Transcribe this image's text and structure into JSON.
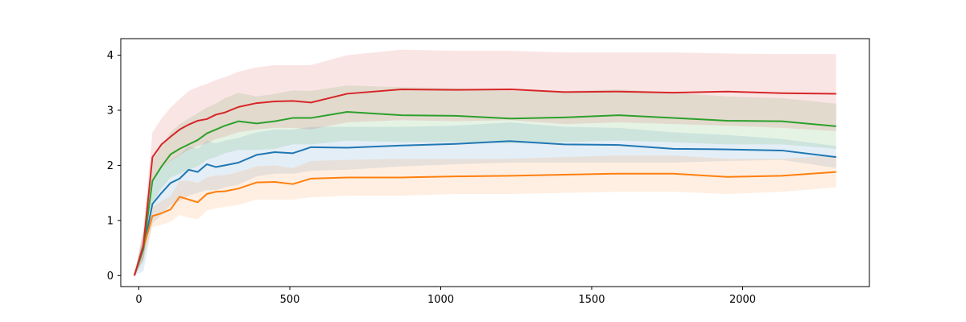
{
  "chart_data": {
    "type": "line",
    "title": "",
    "xlabel": "",
    "ylabel": "",
    "xlim": [
      -60,
      2420
    ],
    "ylim": [
      -0.2,
      4.3
    ],
    "xticks": [
      0,
      500,
      1000,
      1500,
      2000
    ],
    "yticks": [
      0,
      1,
      2,
      3,
      4
    ],
    "grid": false,
    "legend": "none",
    "shaded_bands": true,
    "series": [
      {
        "color": "#1f77b4",
        "band_opacity": 0.12,
        "x": [
          -15,
          15,
          45,
          75,
          105,
          135,
          165,
          195,
          225,
          255,
          285,
          330,
          390,
          450,
          510,
          570,
          690,
          870,
          1050,
          1230,
          1410,
          1590,
          1770,
          1950,
          2130,
          2310
        ],
        "y": [
          0,
          0.48,
          1.3,
          1.5,
          1.68,
          1.76,
          1.92,
          1.88,
          2.02,
          1.97,
          2.0,
          2.05,
          2.19,
          2.24,
          2.22,
          2.33,
          2.32,
          2.36,
          2.39,
          2.44,
          2.38,
          2.37,
          2.3,
          2.29,
          2.27,
          2.15
        ],
        "lower": [
          0,
          0.08,
          0.95,
          1.1,
          1.28,
          1.35,
          1.45,
          1.5,
          1.55,
          1.55,
          1.6,
          1.65,
          1.8,
          1.85,
          1.85,
          1.9,
          1.92,
          1.98,
          2.02,
          2.05,
          2.05,
          2.05,
          2.05,
          2.08,
          2.1,
          1.95
        ],
        "upper": [
          0,
          0.8,
          1.7,
          1.95,
          2.1,
          2.2,
          2.35,
          2.3,
          2.45,
          2.4,
          2.45,
          2.5,
          2.6,
          2.65,
          2.65,
          2.7,
          2.7,
          2.7,
          2.72,
          2.78,
          2.7,
          2.68,
          2.6,
          2.55,
          2.48,
          2.35
        ]
      },
      {
        "color": "#ff7f0e",
        "band_opacity": 0.12,
        "x": [
          -15,
          15,
          45,
          75,
          105,
          135,
          165,
          195,
          225,
          255,
          285,
          330,
          390,
          450,
          510,
          570,
          690,
          870,
          1050,
          1230,
          1410,
          1590,
          1770,
          1950,
          2130,
          2310
        ],
        "y": [
          0,
          0.5,
          1.08,
          1.13,
          1.2,
          1.43,
          1.38,
          1.33,
          1.48,
          1.52,
          1.53,
          1.58,
          1.69,
          1.7,
          1.66,
          1.76,
          1.78,
          1.78,
          1.8,
          1.81,
          1.83,
          1.85,
          1.85,
          1.79,
          1.81,
          1.88
        ],
        "lower": [
          0,
          0.3,
          0.88,
          0.92,
          0.98,
          1.1,
          1.05,
          1.02,
          1.18,
          1.22,
          1.25,
          1.28,
          1.38,
          1.38,
          1.38,
          1.42,
          1.45,
          1.45,
          1.48,
          1.48,
          1.5,
          1.52,
          1.52,
          1.48,
          1.52,
          1.6
        ],
        "upper": [
          0,
          0.68,
          1.25,
          1.35,
          1.45,
          1.72,
          1.72,
          1.68,
          1.78,
          1.82,
          1.82,
          1.88,
          1.98,
          2.0,
          1.95,
          2.08,
          2.1,
          2.12,
          2.12,
          2.12,
          2.15,
          2.18,
          2.18,
          2.12,
          2.12,
          2.18
        ]
      },
      {
        "color": "#2ca02c",
        "band_opacity": 0.12,
        "x": [
          -15,
          15,
          45,
          75,
          105,
          135,
          165,
          195,
          225,
          255,
          285,
          330,
          390,
          450,
          510,
          570,
          690,
          870,
          1050,
          1230,
          1410,
          1590,
          1770,
          1950,
          2130,
          2310
        ],
        "y": [
          0,
          0.5,
          1.72,
          1.98,
          2.2,
          2.3,
          2.38,
          2.46,
          2.58,
          2.65,
          2.72,
          2.8,
          2.76,
          2.8,
          2.86,
          2.86,
          2.97,
          2.91,
          2.9,
          2.85,
          2.87,
          2.91,
          2.86,
          2.81,
          2.8,
          2.71
        ],
        "lower": [
          0,
          0.25,
          1.32,
          1.58,
          1.78,
          1.85,
          1.92,
          1.98,
          2.1,
          2.15,
          2.22,
          2.28,
          2.28,
          2.3,
          2.38,
          2.38,
          2.45,
          2.42,
          2.42,
          2.4,
          2.42,
          2.45,
          2.42,
          2.38,
          2.38,
          2.3
        ],
        "upper": [
          0,
          0.75,
          2.1,
          2.35,
          2.6,
          2.75,
          2.85,
          2.95,
          3.05,
          3.12,
          3.22,
          3.32,
          3.25,
          3.3,
          3.36,
          3.35,
          3.45,
          3.42,
          3.4,
          3.35,
          3.35,
          3.38,
          3.32,
          3.25,
          3.22,
          3.12
        ]
      },
      {
        "color": "#d62728",
        "band_opacity": 0.12,
        "x": [
          -15,
          15,
          45,
          75,
          105,
          135,
          165,
          195,
          225,
          255,
          285,
          330,
          390,
          450,
          510,
          570,
          690,
          870,
          1050,
          1230,
          1410,
          1590,
          1770,
          1950,
          2130,
          2310
        ],
        "y": [
          0,
          0.55,
          2.15,
          2.38,
          2.52,
          2.65,
          2.74,
          2.81,
          2.84,
          2.92,
          2.96,
          3.06,
          3.13,
          3.16,
          3.17,
          3.14,
          3.3,
          3.38,
          3.37,
          3.38,
          3.33,
          3.34,
          3.32,
          3.34,
          3.31,
          3.3
        ],
        "lower": [
          0,
          0.3,
          1.72,
          1.95,
          2.08,
          2.18,
          2.28,
          2.35,
          2.4,
          2.48,
          2.52,
          2.6,
          2.65,
          2.68,
          2.68,
          2.65,
          2.78,
          2.82,
          2.8,
          2.82,
          2.75,
          2.78,
          2.75,
          2.72,
          2.68,
          2.62
        ],
        "upper": [
          0,
          0.85,
          2.6,
          2.85,
          3.05,
          3.2,
          3.35,
          3.42,
          3.48,
          3.55,
          3.6,
          3.7,
          3.78,
          3.82,
          3.82,
          3.82,
          4.0,
          4.1,
          4.08,
          4.08,
          4.05,
          4.05,
          4.05,
          4.03,
          4.02,
          4.02
        ]
      }
    ]
  }
}
